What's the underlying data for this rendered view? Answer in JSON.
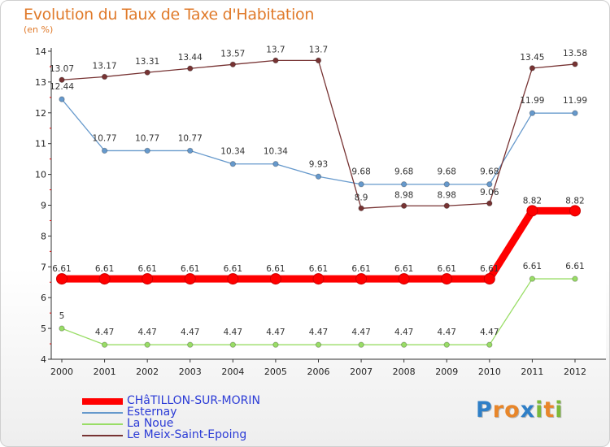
{
  "chart_data": {
    "type": "line",
    "title": "Evolution du Taux de Taxe d'Habitation",
    "subtitle": "(en %)",
    "xlabel": "",
    "ylabel": "",
    "ylim": [
      4,
      14
    ],
    "yticks": [
      4,
      5,
      6,
      7,
      8,
      9,
      10,
      11,
      12,
      13,
      14
    ],
    "grid": false,
    "categories": [
      "2000",
      "2001",
      "2002",
      "2003",
      "2004",
      "2005",
      "2006",
      "2007",
      "2008",
      "2009",
      "2010",
      "2011",
      "2012"
    ],
    "series": [
      {
        "name": "CHâTILLON-SUR-MORIN",
        "color": "#ff0000",
        "values": [
          6.61,
          6.61,
          6.61,
          6.61,
          6.61,
          6.61,
          6.61,
          6.61,
          6.61,
          6.61,
          6.61,
          8.82,
          8.82
        ],
        "labels": [
          "6.61",
          "6.61",
          "6.61",
          "6.61",
          "6.61",
          "6.61",
          "6.61",
          "6.61",
          "6.61",
          "6.61",
          "6.61",
          "8.82",
          "8.82"
        ]
      },
      {
        "name": "Esternay",
        "color": "#6699cc",
        "values": [
          12.44,
          10.77,
          10.77,
          10.77,
          10.34,
          10.34,
          9.93,
          9.68,
          9.68,
          9.68,
          9.68,
          11.99,
          11.99
        ],
        "labels": [
          "12.44",
          "10.77",
          "10.77",
          "10.77",
          "10.34",
          "10.34",
          "9.93",
          "9.68",
          "9.68",
          "9.68",
          "9.68",
          "11.99",
          "11.99"
        ]
      },
      {
        "name": "La Noue",
        "color": "#99dd66",
        "values": [
          5,
          4.47,
          4.47,
          4.47,
          4.47,
          4.47,
          4.47,
          4.47,
          4.47,
          4.47,
          4.47,
          6.61,
          6.61
        ],
        "labels": [
          "5",
          "4.47",
          "4.47",
          "4.47",
          "4.47",
          "4.47",
          "4.47",
          "4.47",
          "4.47",
          "4.47",
          "4.47",
          "6.61",
          "6.61"
        ]
      },
      {
        "name": "Le Meix-Saint-Epoing",
        "color": "#773333",
        "values": [
          13.07,
          13.17,
          13.31,
          13.44,
          13.57,
          13.7,
          13.7,
          8.9,
          8.98,
          8.98,
          9.06,
          13.45,
          13.58
        ],
        "labels": [
          "13.07",
          "13.17",
          "13.31",
          "13.44",
          "13.57",
          "13.7",
          "13.7",
          "8.9",
          "8.98",
          "8.98",
          "9.06",
          "13.45",
          "13.58"
        ]
      }
    ],
    "legend": "bottom-left"
  },
  "branding": {
    "logo_letters": [
      "P",
      "r",
      "o",
      "x",
      "i",
      "t",
      "i"
    ],
    "logo_colors": [
      "#2f7fc7",
      "#e8862a",
      "#e8862a",
      "#2f7fc7",
      "#7cb93a",
      "#e8862a",
      "#7cb93a"
    ]
  }
}
